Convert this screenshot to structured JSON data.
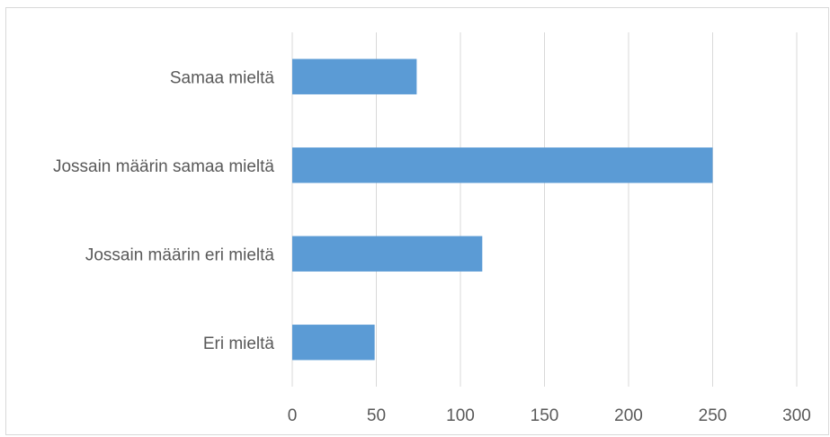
{
  "chart_data": {
    "type": "bar",
    "orientation": "horizontal",
    "categories": [
      "Samaa mieltä",
      "Jossain määrin samaa mieltä",
      "Jossain määrin eri mieltä",
      "Eri mieltä"
    ],
    "values": [
      74,
      250,
      113,
      49
    ],
    "xlim": [
      0,
      300
    ],
    "x_ticks": [
      "0",
      "50",
      "100",
      "150",
      "200",
      "250",
      "300"
    ],
    "grid": "vertical",
    "bar_color": "#5b9bd5",
    "title": "",
    "xlabel": "",
    "ylabel": ""
  }
}
